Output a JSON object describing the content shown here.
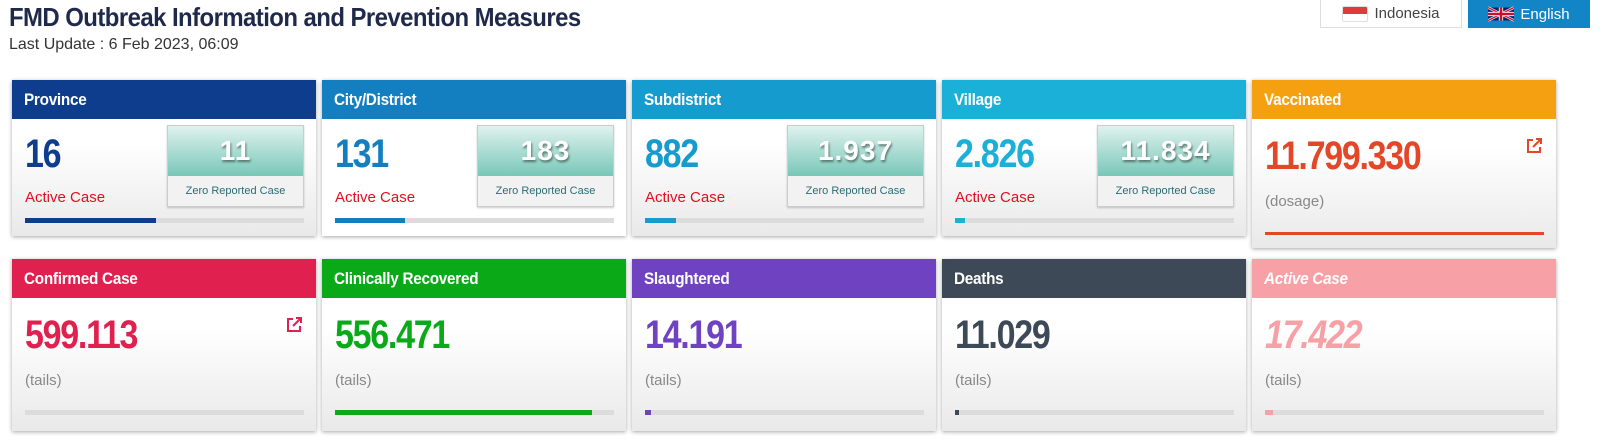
{
  "header": {
    "title": "FMD Outbreak Information and Prevention Measures",
    "last_update": "Last Update : 6 Feb 2023, 06:09"
  },
  "languages": {
    "indonesia": "Indonesia",
    "english": "English"
  },
  "region_cards": [
    {
      "title": "Province",
      "active_count": "16",
      "active_label": "Active Case",
      "zero_count": "11",
      "zero_label": "Zero Reported Case",
      "color": "#0d3d8c",
      "progress": 0.47
    },
    {
      "title": "City/District",
      "active_count": "131",
      "active_label": "Active Case",
      "zero_count": "183",
      "zero_label": "Zero Reported Case",
      "color": "#137ec0",
      "progress": 0.25
    },
    {
      "title": "Subdistrict",
      "active_count": "882",
      "active_label": "Active Case",
      "zero_count": "1.937",
      "zero_label": "Zero Reported Case",
      "color": "#159bcd",
      "progress": 0.11
    },
    {
      "title": "Village",
      "active_count": "2.826",
      "active_label": "Active Case",
      "zero_count": "11.834",
      "zero_label": "Zero Reported Case",
      "color": "#1ab0d8",
      "progress": 0.035
    }
  ],
  "vaccinated": {
    "title": "Vaccinated",
    "count": "11.799.330",
    "unit": "(dosage)",
    "color": "#f5a010",
    "value_color": "#e44727",
    "progress": 1.0
  },
  "stat_cards": [
    {
      "title": "Confirmed Case",
      "count": "599.113",
      "unit": "(tails)",
      "color": "#e0214f",
      "progress": 0.0,
      "has_link": true
    },
    {
      "title": "Clinically Recovered",
      "count": "556.471",
      "unit": "(tails)",
      "color": "#0aa918",
      "progress": 0.92,
      "has_link": false
    },
    {
      "title": "Slaughtered",
      "count": "14.191",
      "unit": "(tails)",
      "color": "#6f42c1",
      "progress": 0.02,
      "has_link": false
    },
    {
      "title": "Deaths",
      "count": "11.029",
      "unit": "(tails)",
      "color": "#3d4957",
      "progress": 0.015,
      "has_link": false
    },
    {
      "title": "Active Case",
      "count": "17.422",
      "unit": "(tails)",
      "color": "#f7a0a6",
      "progress": 0.03,
      "has_link": false
    }
  ],
  "icons": {
    "external_link": "external-link-icon",
    "flag_id": "indonesia-flag-icon",
    "flag_en": "uk-flag-icon"
  }
}
